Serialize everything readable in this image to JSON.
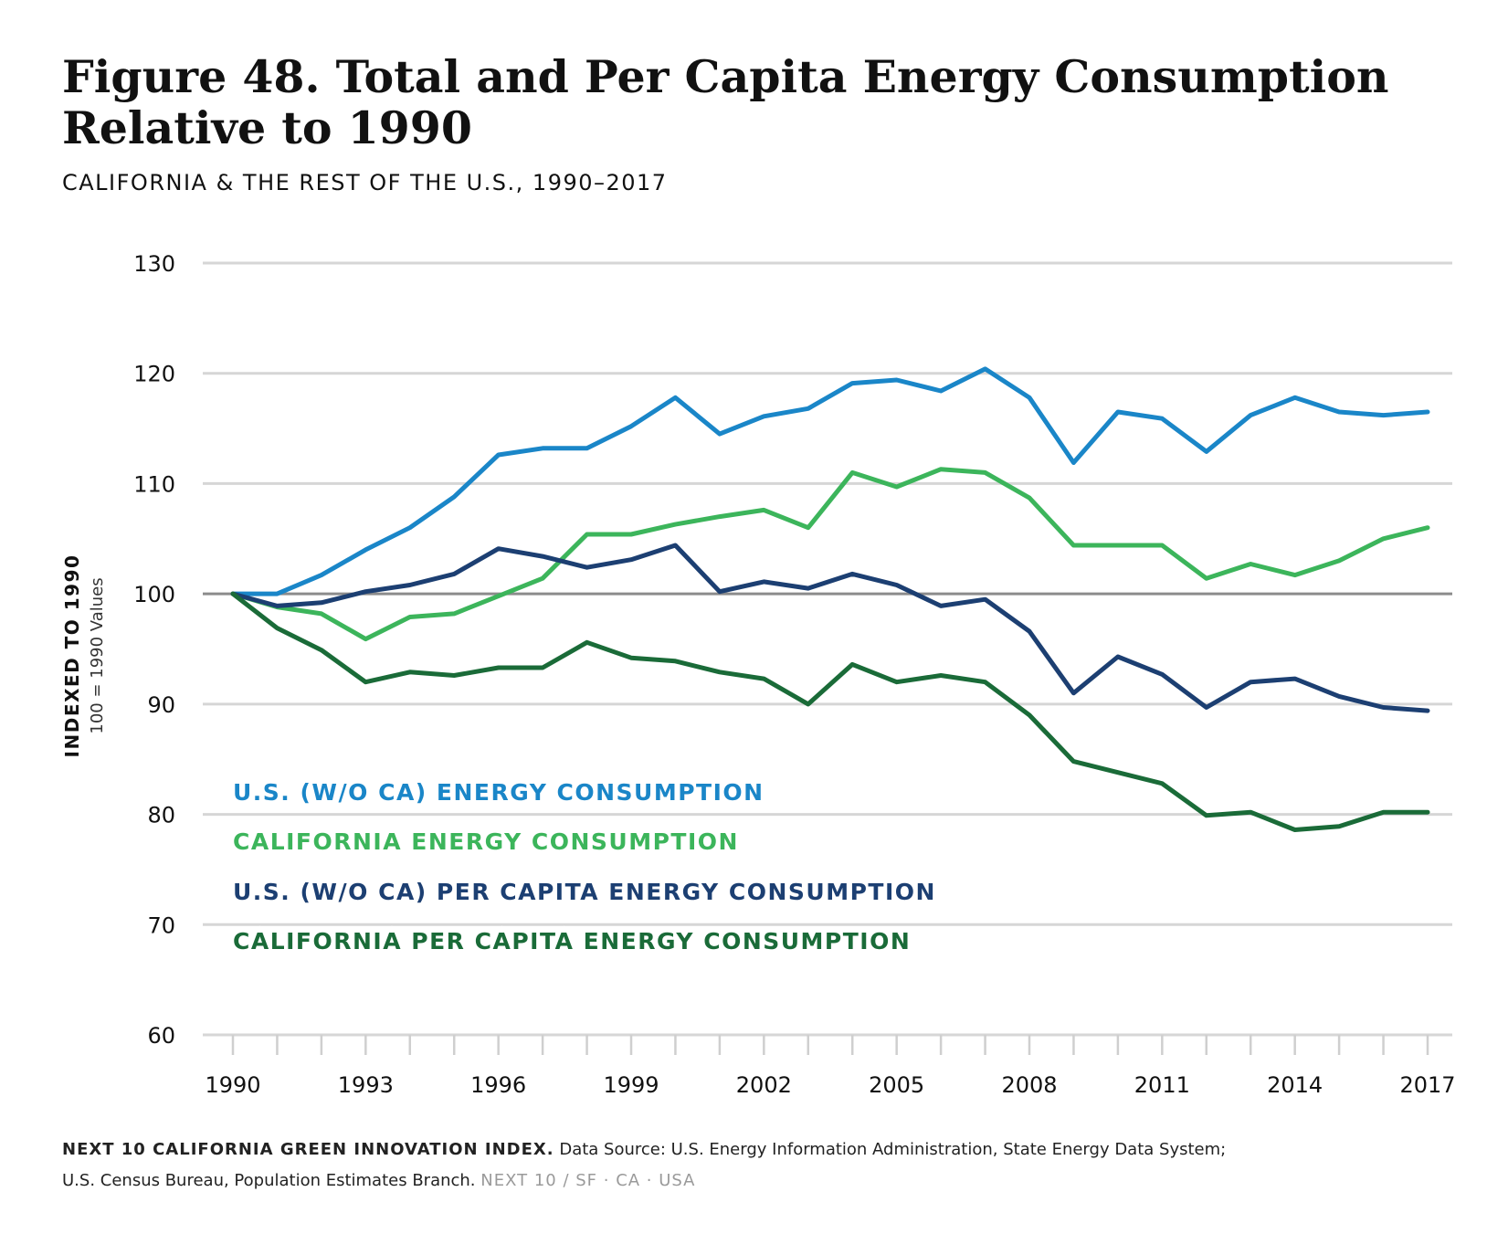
{
  "header": {
    "title_line1": "Figure 48. Total and Per Capita Energy Consumption",
    "title_line2": "Relative to 1990",
    "subtitle": "CALIFORNIA & THE REST OF THE U.S., 1990–2017"
  },
  "chart_data": {
    "type": "line",
    "ylabel": "INDEXED TO 1990",
    "ylabel_note": "100 = 1990 Values",
    "ylim": [
      60,
      130
    ],
    "yticks": [
      130,
      120,
      110,
      100,
      90,
      80,
      70,
      60
    ],
    "x": [
      1990,
      1991,
      1992,
      1993,
      1994,
      1995,
      1996,
      1997,
      1998,
      1999,
      2000,
      2001,
      2002,
      2003,
      2004,
      2005,
      2006,
      2007,
      2008,
      2009,
      2010,
      2011,
      2012,
      2013,
      2014,
      2015,
      2016,
      2017
    ],
    "xtick_labels": [
      "1990",
      "1993",
      "1996",
      "1999",
      "2002",
      "2005",
      "2008",
      "2011",
      "2014",
      "2017"
    ],
    "baseline": 100,
    "grid": true,
    "legend_position": "lower-left",
    "series": [
      {
        "name": "U.S. (W/O CA) ENERGY CONSUMPTION",
        "color": "#1a86c8",
        "values": [
          100,
          100,
          101.7,
          104,
          106,
          108.8,
          112.6,
          113.2,
          113.2,
          115.2,
          117.8,
          114.5,
          116.1,
          116.8,
          119.1,
          119.4,
          118.4,
          120.4,
          117.8,
          111.9,
          116.5,
          115.9,
          112.9,
          116.2,
          117.8,
          116.5,
          116.2,
          116.5
        ]
      },
      {
        "name": "CALIFORNIA ENERGY CONSUMPTION",
        "color": "#3cb55b",
        "values": [
          100,
          98.8,
          98.2,
          95.9,
          97.9,
          98.2,
          99.8,
          101.4,
          105.4,
          105.4,
          106.3,
          107,
          107.6,
          106,
          111,
          109.7,
          111.3,
          111,
          108.7,
          104.4,
          104.4,
          104.4,
          101.4,
          102.7,
          101.7,
          103,
          105,
          106
        ]
      },
      {
        "name": "U.S. (W/O CA) PER CAPITA ENERGY CONSUMPTION",
        "color": "#1c3f72",
        "values": [
          100,
          98.9,
          99.2,
          100.2,
          100.8,
          101.8,
          104.1,
          103.4,
          102.4,
          103.1,
          104.4,
          100.2,
          101.1,
          100.5,
          101.8,
          100.8,
          98.9,
          99.5,
          96.6,
          91,
          94.3,
          92.7,
          89.7,
          92,
          92.3,
          90.7,
          89.7,
          89.4
        ]
      },
      {
        "name": "CALIFORNIA PER CAPITA ENERGY CONSUMPTION",
        "color": "#1a6b38",
        "values": [
          100,
          96.9,
          94.9,
          92,
          92.9,
          92.6,
          93.3,
          93.3,
          95.6,
          94.2,
          93.9,
          92.9,
          92.3,
          90,
          93.6,
          92,
          92.6,
          92,
          89,
          84.8,
          83.8,
          82.8,
          79.9,
          80.2,
          78.6,
          78.9,
          80.2,
          80.2
        ]
      }
    ]
  },
  "footer": {
    "source_title": "NEXT 10 CALIFORNIA GREEN INNOVATION INDEX.",
    "source_text": "Data Source: U.S. Energy Information Administration, State Energy Data System;",
    "source_text2": "U.S. Census Bureau, Population Estimates Branch.",
    "brand": "NEXT 10  /  SF · CA · USA"
  }
}
